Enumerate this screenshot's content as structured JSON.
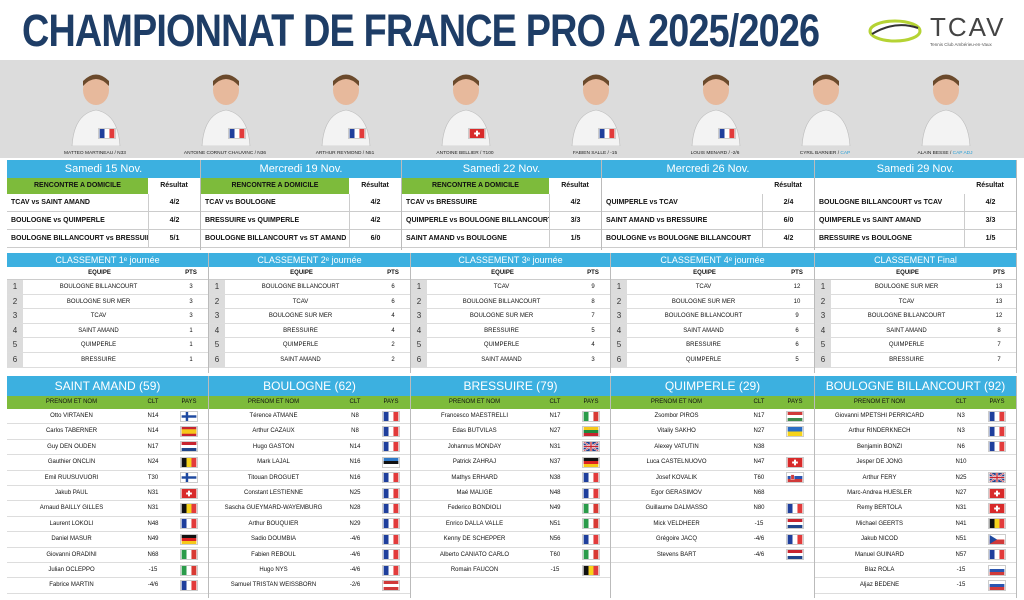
{
  "title": "CHAMPIONNAT DE FRANCE PRO A 2025/2026",
  "logo": {
    "text": "TCAV",
    "sub": "Tennis Club Ambérieu-en-Vaux"
  },
  "colors": {
    "blue": "#3cb0e0",
    "green": "#7dbb3b",
    "title": "#1e3d66"
  },
  "players": [
    {
      "name": "MATTEO MARTINEAU / N33",
      "role": "",
      "flag": "fr"
    },
    {
      "name": "ANTOINE CORNUT CHAUVINC / N36",
      "role": "",
      "flag": "fr"
    },
    {
      "name": "ARTHUR REYMOND / N51",
      "role": "",
      "flag": "fr"
    },
    {
      "name": "ANTOINE BELLIER / T100",
      "role": "",
      "flag": "ch"
    },
    {
      "name": "FABIEN SALLE / -15",
      "role": "",
      "flag": "fr"
    },
    {
      "name": "LOUIS MENARD / -2/6",
      "role": "",
      "flag": "fr"
    },
    {
      "name": "CYRIL BARNIER / ",
      "role": "CAP",
      "flag": ""
    },
    {
      "name": "ALAIN BESSE / ",
      "role": "CAP ADJ",
      "flag": ""
    }
  ],
  "weeks": [
    {
      "date": "Samedi 15 Nov.",
      "home": "RENCONTRE A DOMICILE",
      "result_label": "Résultat",
      "matches": [
        {
          "m": "TCAV vs SAINT AMAND",
          "s": "4/2"
        },
        {
          "m": "BOULOGNE vs QUIMPERLE",
          "s": "4/2"
        },
        {
          "m": "BOULOGNE BILLANCOURT vs BRESSUIRE",
          "s": "5/1"
        }
      ]
    },
    {
      "date": "Mercredi 19 Nov.",
      "home": "RENCONTRE A DOMICILE",
      "result_label": "Résultat",
      "matches": [
        {
          "m": "TCAV vs BOULOGNE",
          "s": "4/2"
        },
        {
          "m": "BRESSUIRE vs QUIMPERLE",
          "s": "4/2"
        },
        {
          "m": "BOULOGNE BILLANCOURT vs ST AMAND",
          "s": "6/0"
        }
      ]
    },
    {
      "date": "Samedi 22 Nov.",
      "home": "RENCONTRE A DOMICILE",
      "result_label": "Résultat",
      "matches": [
        {
          "m": "TCAV vs BRESSUIRE",
          "s": "4/2"
        },
        {
          "m": "QUIMPERLE vs BOULOGNE BILLANCOURT",
          "s": "3/3"
        },
        {
          "m": "SAINT AMAND vs BOULOGNE",
          "s": "1/5"
        }
      ]
    },
    {
      "date": "Mercredi 26 Nov.",
      "home": "",
      "result_label": "Résultat",
      "matches": [
        {
          "m": "QUIMPERLE vs TCAV",
          "s": "2/4"
        },
        {
          "m": "SAINT AMAND vs BRESSUIRE",
          "s": "6/0"
        },
        {
          "m": "BOULOGNE vs BOULOGNE BILLANCOURT",
          "s": "4/2"
        }
      ]
    },
    {
      "date": "Samedi 29 Nov.",
      "home": "",
      "result_label": "Résultat",
      "matches": [
        {
          "m": "BOULOGNE BILLANCOURT vs TCAV",
          "s": "4/2"
        },
        {
          "m": "QUIMPERLE vs SAINT AMAND",
          "s": "3/3"
        },
        {
          "m": "BRESSUIRE vs BOULOGNE",
          "s": "1/5"
        }
      ]
    }
  ],
  "classements": [
    {
      "title": "CLASSEMENT 1ᵉ journée",
      "equipe": "EQUIPE",
      "pts": "PTS",
      "rows": [
        {
          "r": "1",
          "t": "BOULOGNE BILLANCOURT",
          "p": "3"
        },
        {
          "r": "2",
          "t": "BOULOGNE SUR MER",
          "p": "3"
        },
        {
          "r": "3",
          "t": "TCAV",
          "p": "3"
        },
        {
          "r": "4",
          "t": "SAINT AMAND",
          "p": "1"
        },
        {
          "r": "5",
          "t": "QUIMPERLE",
          "p": "1"
        },
        {
          "r": "6",
          "t": "BRESSUIRE",
          "p": "1"
        }
      ]
    },
    {
      "title": "CLASSEMENT 2ᵉ journée",
      "equipe": "EQUIPE",
      "pts": "PTS",
      "rows": [
        {
          "r": "1",
          "t": "BOULOGNE BILLANCOURT",
          "p": "6"
        },
        {
          "r": "2",
          "t": "TCAV",
          "p": "6"
        },
        {
          "r": "3",
          "t": "BOULOGNE SUR MER",
          "p": "4"
        },
        {
          "r": "4",
          "t": "BRESSUIRE",
          "p": "4"
        },
        {
          "r": "5",
          "t": "QUIMPERLE",
          "p": "2"
        },
        {
          "r": "6",
          "t": "SAINT AMAND",
          "p": "2"
        }
      ]
    },
    {
      "title": "CLASSEMENT 3ᵉ journée",
      "equipe": "EQUIPE",
      "pts": "PTS",
      "rows": [
        {
          "r": "1",
          "t": "TCAV",
          "p": "9"
        },
        {
          "r": "2",
          "t": "BOULOGNE BILLANCOURT",
          "p": "8"
        },
        {
          "r": "3",
          "t": "BOULOGNE SUR MER",
          "p": "7"
        },
        {
          "r": "4",
          "t": "BRESSUIRE",
          "p": "5"
        },
        {
          "r": "5",
          "t": "QUIMPERLE",
          "p": "4"
        },
        {
          "r": "6",
          "t": "SAINT AMAND",
          "p": "3"
        }
      ]
    },
    {
      "title": "CLASSEMENT 4ᵉ journée",
      "equipe": "EQUIPE",
      "pts": "PTS",
      "rows": [
        {
          "r": "1",
          "t": "TCAV",
          "p": "12"
        },
        {
          "r": "2",
          "t": "BOULOGNE SUR MER",
          "p": "10"
        },
        {
          "r": "3",
          "t": "BOULOGNE BILLANCOURT",
          "p": "9"
        },
        {
          "r": "4",
          "t": "SAINT AMAND",
          "p": "6"
        },
        {
          "r": "5",
          "t": "BRESSUIRE",
          "p": "6"
        },
        {
          "r": "6",
          "t": "QUIMPERLE",
          "p": "5"
        }
      ]
    },
    {
      "title": "CLASSEMENT Final",
      "equipe": "EQUIPE",
      "pts": "PTS",
      "rows": [
        {
          "r": "1",
          "t": "BOULOGNE SUR MER",
          "p": "13"
        },
        {
          "r": "2",
          "t": "TCAV",
          "p": "13"
        },
        {
          "r": "3",
          "t": "BOULOGNE BILLANCOURT",
          "p": "12"
        },
        {
          "r": "4",
          "t": "SAINT AMAND",
          "p": "8"
        },
        {
          "r": "5",
          "t": "QUIMPERLE",
          "p": "7"
        },
        {
          "r": "6",
          "t": "BRESSUIRE",
          "p": "7"
        }
      ]
    }
  ],
  "rosters": [
    {
      "team": "SAINT AMAND (59)",
      "h_name": "PRENOM ET NOM",
      "h_clt": "CLT",
      "h_pays": "PAYS",
      "players": [
        {
          "n": "Otto VIRTANEN",
          "c": "N14",
          "f": "fi"
        },
        {
          "n": "Carlos TABERNER",
          "c": "N14",
          "f": "es"
        },
        {
          "n": "Guy DEN OUDEN",
          "c": "N17",
          "f": "nl"
        },
        {
          "n": "Gauthier ONCLIN",
          "c": "N24",
          "f": "be"
        },
        {
          "n": "Emil RUUSUVUORI",
          "c": "T30",
          "f": "fi"
        },
        {
          "n": "Jakub PAUL",
          "c": "N31",
          "f": "ch"
        },
        {
          "n": "Arnaud BAILLY GILLES",
          "c": "N31",
          "f": "be"
        },
        {
          "n": "Laurent LOKOLI",
          "c": "N48",
          "f": "fr"
        },
        {
          "n": "Daniel MASUR",
          "c": "N49",
          "f": "de"
        },
        {
          "n": "Giovanni ORADINI",
          "c": "N68",
          "f": "it"
        },
        {
          "n": "Julian OCLEPPO",
          "c": "-15",
          "f": "it"
        },
        {
          "n": "Fabrice MARTIN",
          "c": "-4/6",
          "f": "fr"
        }
      ]
    },
    {
      "team": "BOULOGNE (62)",
      "h_name": "PRENOM ET NOM",
      "h_clt": "CLT",
      "h_pays": "PAYS",
      "players": [
        {
          "n": "Térence ATMANE",
          "c": "N8",
          "f": "fr"
        },
        {
          "n": "Arthur CAZAUX",
          "c": "N8",
          "f": "fr"
        },
        {
          "n": "Hugo GASTON",
          "c": "N14",
          "f": "fr"
        },
        {
          "n": "Mark LAJAL",
          "c": "N16",
          "f": "ee"
        },
        {
          "n": "Titouan DROGUET",
          "c": "N16",
          "f": "fr"
        },
        {
          "n": "Constant LESTIENNE",
          "c": "N25",
          "f": "fr"
        },
        {
          "n": "Sascha GUEYMARD-WAYEMBURG",
          "c": "N28",
          "f": "fr"
        },
        {
          "n": "Arthur BOUQUIER",
          "c": "N29",
          "f": "fr"
        },
        {
          "n": "Sadio DOUMBIA",
          "c": "-4/6",
          "f": "fr"
        },
        {
          "n": "Fabien REBOUL",
          "c": "-4/6",
          "f": "fr"
        },
        {
          "n": "Hugo NYS",
          "c": "-4/6",
          "f": "fr"
        },
        {
          "n": "Samuel TRISTAN WEISSBORN",
          "c": "-2/6",
          "f": "at"
        }
      ]
    },
    {
      "team": "BRESSUIRE (79)",
      "h_name": "PRENOM ET NOM",
      "h_clt": "CLT",
      "h_pays": "PAYS",
      "players": [
        {
          "n": "Francesco MAESTRELLI",
          "c": "N17",
          "f": "it"
        },
        {
          "n": "Edas BUTVILAS",
          "c": "N27",
          "f": "lt"
        },
        {
          "n": "Johannus MONDAY",
          "c": "N31",
          "f": "gb"
        },
        {
          "n": "Patrick ZAHRAJ",
          "c": "N37",
          "f": "de"
        },
        {
          "n": "Mathys ERHARD",
          "c": "N38",
          "f": "fr"
        },
        {
          "n": "Maé MALIGE",
          "c": "N48",
          "f": "fr"
        },
        {
          "n": "Federico BONDIOLI",
          "c": "N49",
          "f": "it"
        },
        {
          "n": "Enrico DALLA VALLE",
          "c": "N51",
          "f": "it"
        },
        {
          "n": "Kenny DE SCHEPPER",
          "c": "N56",
          "f": "fr"
        },
        {
          "n": "Alberto CANIATO CARLO",
          "c": "T60",
          "f": "it"
        },
        {
          "n": "Romain FAUCON",
          "c": "-15",
          "f": "be"
        }
      ]
    },
    {
      "team": "QUIMPERLE (29)",
      "h_name": "PRENOM ET NOM",
      "h_clt": "CLT",
      "h_pays": "PAYS",
      "players": [
        {
          "n": "Zsombor PIROS",
          "c": "N17",
          "f": "hu"
        },
        {
          "n": "Vitaliy SAKHO",
          "c": "N27",
          "f": "ua"
        },
        {
          "n": "Alexey VATUTIN",
          "c": "N38",
          "f": ""
        },
        {
          "n": "Luca CASTELNUOVO",
          "c": "N47",
          "f": "ch"
        },
        {
          "n": "Josef KOVALIK",
          "c": "T60",
          "f": "sk"
        },
        {
          "n": "Egor GERASIMOV",
          "c": "N68",
          "f": ""
        },
        {
          "n": "Guillaume DALMASSO",
          "c": "N80",
          "f": "fr"
        },
        {
          "n": "Mick VELDHEER",
          "c": "-15",
          "f": "nl"
        },
        {
          "n": "Grégoire JACQ",
          "c": "-4/6",
          "f": "fr"
        },
        {
          "n": "Stevens BART",
          "c": "-4/6",
          "f": "nl"
        }
      ]
    },
    {
      "team": "BOULOGNE BILLANCOURT (92)",
      "h_name": "PRENOM ET NOM",
      "h_clt": "CLT",
      "h_pays": "PAYS",
      "players": [
        {
          "n": "Giovanni MPETSHI PERRICARD",
          "c": "N3",
          "f": "fr"
        },
        {
          "n": "Arthur RINDERKNECH",
          "c": "N3",
          "f": "fr"
        },
        {
          "n": "Benjamin BONZI",
          "c": "N6",
          "f": "fr"
        },
        {
          "n": "Jesper DE JONG",
          "c": "N10",
          "f": ""
        },
        {
          "n": "Arthur FERY",
          "c": "N25",
          "f": "gb"
        },
        {
          "n": "Marc-Andrea HUESLER",
          "c": "N27",
          "f": "ch"
        },
        {
          "n": "Remy BERTOLA",
          "c": "N31",
          "f": "ch"
        },
        {
          "n": "Michael GEERTS",
          "c": "N41",
          "f": "be"
        },
        {
          "n": "Jakub NICOD",
          "c": "N51",
          "f": "cz"
        },
        {
          "n": "Manuel GUINARD",
          "c": "N57",
          "f": "fr"
        },
        {
          "n": "Blaz ROLA",
          "c": "-15",
          "f": "si"
        },
        {
          "n": "Aljaz BEDENE",
          "c": "-15",
          "f": "si"
        }
      ]
    }
  ]
}
